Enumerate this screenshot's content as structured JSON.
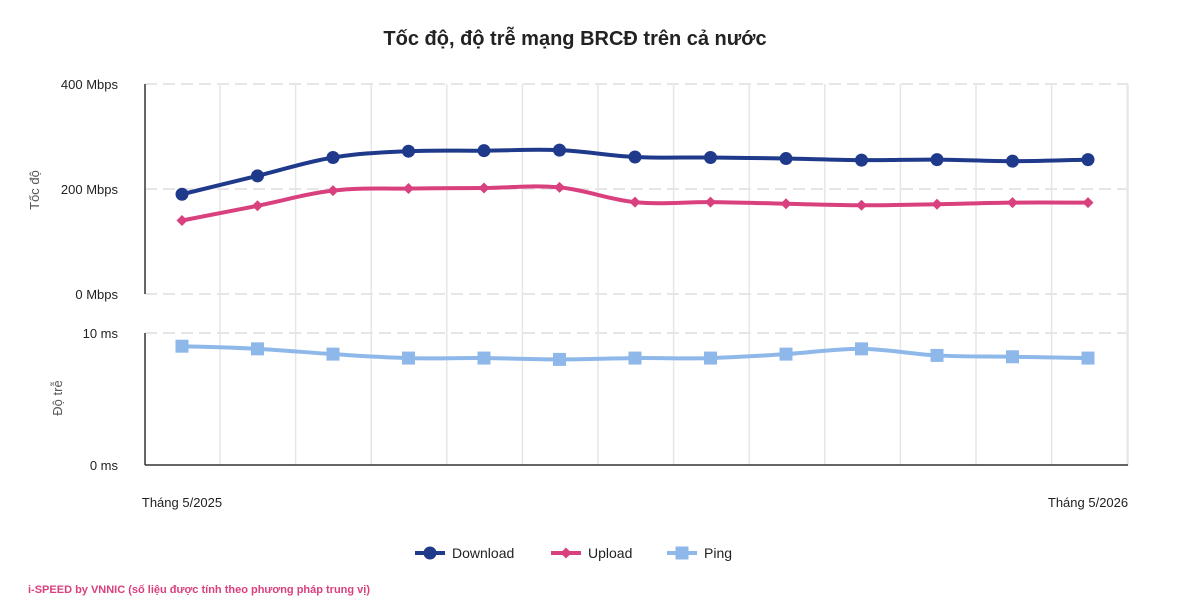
{
  "chart_data": {
    "type": "line",
    "title": "Tốc độ, độ trễ mạng BRCĐ trên cả nước",
    "x_labels": [
      "Tháng 5/2025",
      "Tháng 5/2026"
    ],
    "x": [
      "2025-05",
      "2025-06",
      "2025-07",
      "2025-08",
      "2025-09",
      "2025-10",
      "2025-11",
      "2025-12",
      "2026-01",
      "2026-02",
      "2026-03",
      "2026-04",
      "2026-05"
    ],
    "panels": [
      {
        "ylabel": "Tốc độ",
        "ylim": [
          0,
          400
        ],
        "ticks": [
          {
            "value": 0,
            "label": "0 Mbps"
          },
          {
            "value": 200,
            "label": "200 Mbps"
          },
          {
            "value": 400,
            "label": "400 Mbps"
          }
        ],
        "series": [
          {
            "name": "Download",
            "color": "#1f3a8a",
            "marker": "circle",
            "values": [
              190,
              225,
              260,
              272,
              273,
              274,
              261,
              260,
              258,
              255,
              256,
              253,
              256
            ]
          },
          {
            "name": "Upload",
            "color": "#d9407e",
            "marker": "diamond",
            "values": [
              140,
              168,
              197,
              201,
              202,
              203,
              175,
              175,
              172,
              169,
              171,
              174,
              174
            ]
          }
        ]
      },
      {
        "ylabel": "Độ trễ",
        "ylim": [
          0,
          10
        ],
        "ticks": [
          {
            "value": 0,
            "label": "0 ms"
          },
          {
            "value": 10,
            "label": "10 ms"
          }
        ],
        "series": [
          {
            "name": "Ping",
            "color": "#8fb8ea",
            "marker": "square",
            "values": [
              9.0,
              8.8,
              8.4,
              8.1,
              8.1,
              8.0,
              8.1,
              8.1,
              8.4,
              8.8,
              8.3,
              8.2,
              8.1
            ]
          }
        ]
      }
    ],
    "legend": [
      "Download",
      "Upload",
      "Ping"
    ],
    "legend_position": "bottom",
    "grid": true
  },
  "footer": {
    "credit": "i-SPEED by VNNIC (số liệu được tính theo phương pháp trung vị)"
  }
}
